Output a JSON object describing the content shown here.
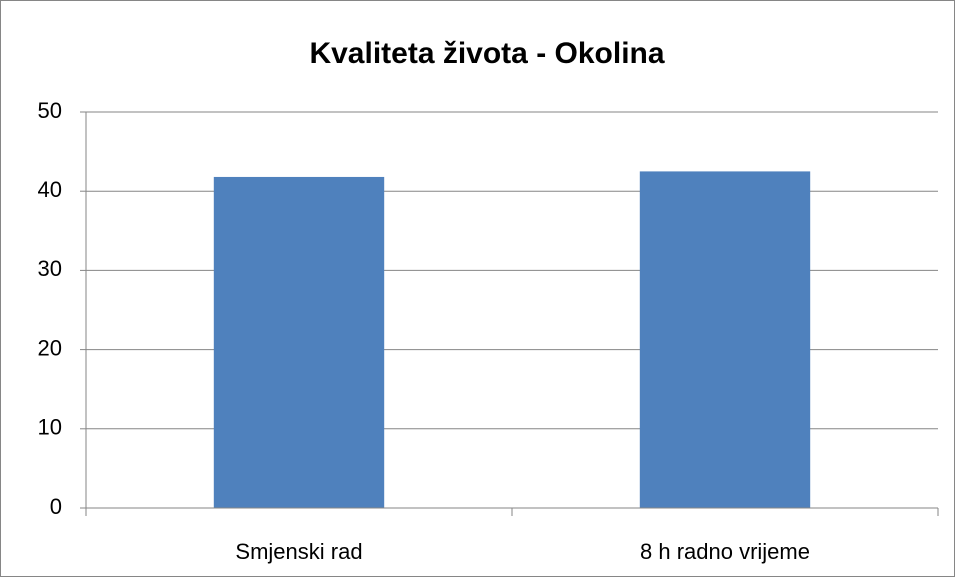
{
  "chart_data": {
    "type": "bar",
    "title": "Kvaliteta života - Okolina",
    "categories": [
      "Smjenski rad",
      "8 h radno vrijeme"
    ],
    "values": [
      41.8,
      42.5
    ],
    "color": "#4f81bd",
    "ylim": [
      0,
      50
    ],
    "yticks": [
      0,
      10,
      20,
      30,
      40,
      50
    ],
    "grid": true
  }
}
